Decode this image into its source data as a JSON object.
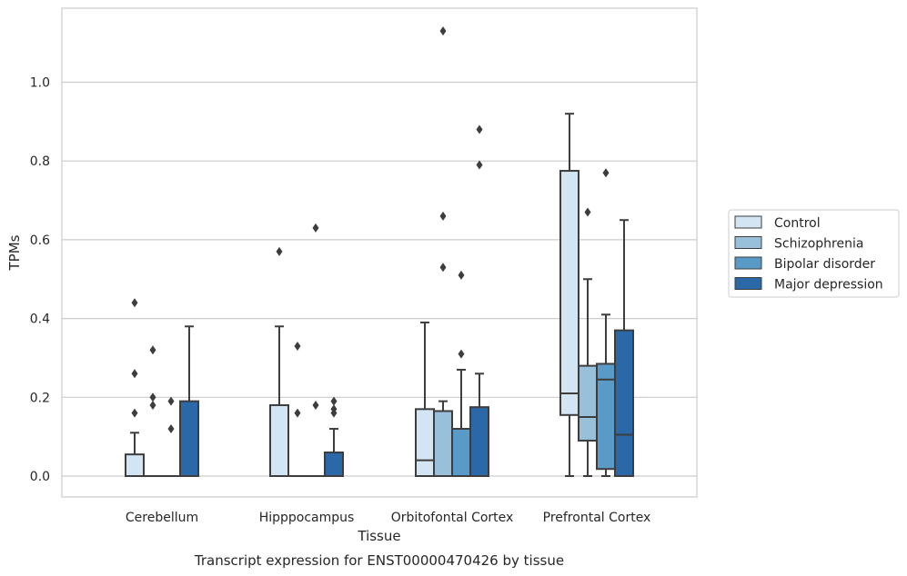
{
  "chart_data": {
    "type": "box",
    "title": "Transcript expression for ENST00000470426 by tissue",
    "xlabel": "Tissue",
    "ylabel": "TPMs",
    "ylim": [
      -0.055,
      1.19
    ],
    "yticks": [
      0.0,
      0.2,
      0.4,
      0.6,
      0.8,
      1.0
    ],
    "ytick_labels": [
      "0.0",
      "0.2",
      "0.4",
      "0.6",
      "0.8",
      "1.0"
    ],
    "grid": "horizontal",
    "legend_position": "right",
    "categories": [
      "Cerebellum",
      "Hipppocampus",
      "Orbitofontal Cortex",
      "Prefrontal Cortex"
    ],
    "series": [
      {
        "name": "Control",
        "color": "#d3e4f2",
        "boxes": [
          {
            "whislo": 0.0,
            "q1": 0.0,
            "med": 0.0,
            "q3": 0.055,
            "whishi": 0.11,
            "fliers": [
              0.16,
              0.26,
              0.44
            ]
          },
          {
            "whislo": 0.0,
            "q1": 0.0,
            "med": 0.0,
            "q3": 0.18,
            "whishi": 0.38,
            "fliers": [
              0.57
            ]
          },
          {
            "whislo": 0.0,
            "q1": 0.0,
            "med": 0.04,
            "q3": 0.17,
            "whishi": 0.39,
            "fliers": []
          },
          {
            "whislo": 0.0,
            "q1": 0.155,
            "med": 0.21,
            "q3": 0.775,
            "whishi": 0.92,
            "fliers": []
          }
        ]
      },
      {
        "name": "Schizophrenia",
        "color": "#98c0db",
        "boxes": [
          {
            "whislo": 0.0,
            "q1": 0.0,
            "med": 0.0,
            "q3": 0.0,
            "whishi": 0.0,
            "fliers": [
              0.18,
              0.2,
              0.32
            ]
          },
          {
            "whislo": 0.0,
            "q1": 0.0,
            "med": 0.0,
            "q3": 0.0,
            "whishi": 0.0,
            "fliers": [
              0.16,
              0.33
            ]
          },
          {
            "whislo": 0.0,
            "q1": 0.0,
            "med": 0.0,
            "q3": 0.165,
            "whishi": 0.19,
            "fliers": [
              0.53,
              0.66,
              1.13
            ]
          },
          {
            "whislo": 0.0,
            "q1": 0.09,
            "med": 0.15,
            "q3": 0.28,
            "whishi": 0.5,
            "fliers": [
              0.67
            ]
          }
        ]
      },
      {
        "name": "Bipolar disorder",
        "color": "#5a9ac7",
        "boxes": [
          {
            "whislo": 0.0,
            "q1": 0.0,
            "med": 0.0,
            "q3": 0.0,
            "whishi": 0.0,
            "fliers": [
              0.12,
              0.19
            ]
          },
          {
            "whislo": 0.0,
            "q1": 0.0,
            "med": 0.0,
            "q3": 0.0,
            "whishi": 0.0,
            "fliers": [
              0.18,
              0.63
            ]
          },
          {
            "whislo": 0.0,
            "q1": 0.0,
            "med": 0.0,
            "q3": 0.12,
            "whishi": 0.27,
            "fliers": [
              0.31,
              0.51
            ]
          },
          {
            "whislo": 0.0,
            "q1": 0.018,
            "med": 0.245,
            "q3": 0.285,
            "whishi": 0.41,
            "fliers": [
              0.77
            ]
          }
        ]
      },
      {
        "name": "Major depression",
        "color": "#2a68a8",
        "boxes": [
          {
            "whislo": 0.0,
            "q1": 0.0,
            "med": 0.0,
            "q3": 0.19,
            "whishi": 0.38,
            "fliers": []
          },
          {
            "whislo": 0.0,
            "q1": 0.0,
            "med": 0.0,
            "q3": 0.06,
            "whishi": 0.12,
            "fliers": [
              0.16,
              0.17,
              0.19
            ]
          },
          {
            "whislo": 0.0,
            "q1": 0.0,
            "med": 0.0,
            "q3": 0.175,
            "whishi": 0.26,
            "fliers": [
              0.79,
              0.88
            ]
          },
          {
            "whislo": 0.0,
            "q1": 0.0,
            "med": 0.105,
            "q3": 0.37,
            "whishi": 0.65,
            "fliers": []
          }
        ]
      }
    ]
  }
}
